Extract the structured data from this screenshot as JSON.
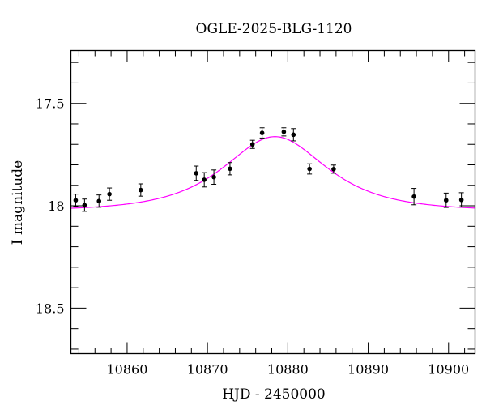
{
  "chart_data": {
    "type": "scatter",
    "title": "OGLE-2025-BLG-1120",
    "xlabel": "HJD - 2450000",
    "ylabel": "I magnitude",
    "xlim": [
      10853.0,
      10903.3
    ],
    "ylim": [
      18.722,
      17.242
    ],
    "y_inverted": true,
    "grid": false,
    "x_ticks": [
      10860,
      10870,
      10880,
      10890,
      10900
    ],
    "x_tick_labels": [
      "10860",
      "10870",
      "10880",
      "10890",
      "10900"
    ],
    "y_ticks": [
      17.5,
      18,
      18.5
    ],
    "y_tick_labels": [
      "17.5",
      "18",
      "18.5"
    ],
    "colors": {
      "points": "#000000",
      "model": "#ff00ff"
    },
    "series": [
      {
        "type": "errorbar",
        "x": [
          10853.6,
          10854.7,
          10856.5,
          10857.8,
          10861.7,
          10868.6,
          10869.6,
          10870.8,
          10872.8,
          10875.6,
          10876.8,
          10879.5,
          10880.7,
          10882.7,
          10885.7,
          10895.7,
          10899.7,
          10901.6
        ],
        "y": [
          17.973,
          17.997,
          17.977,
          17.943,
          17.923,
          17.841,
          17.873,
          17.86,
          17.819,
          17.7,
          17.644,
          17.639,
          17.653,
          17.82,
          17.821,
          17.955,
          17.973,
          17.971
        ],
        "yerr": [
          0.03,
          0.03,
          0.03,
          0.03,
          0.03,
          0.035,
          0.035,
          0.035,
          0.03,
          0.02,
          0.025,
          0.02,
          0.03,
          0.025,
          0.02,
          0.04,
          0.035,
          0.035
        ]
      },
      {
        "type": "model-line",
        "model": "point-lens",
        "t0": 10878.4,
        "tE": 8.0,
        "u0": 0.93,
        "baseline_mag": 18.025
      }
    ]
  }
}
